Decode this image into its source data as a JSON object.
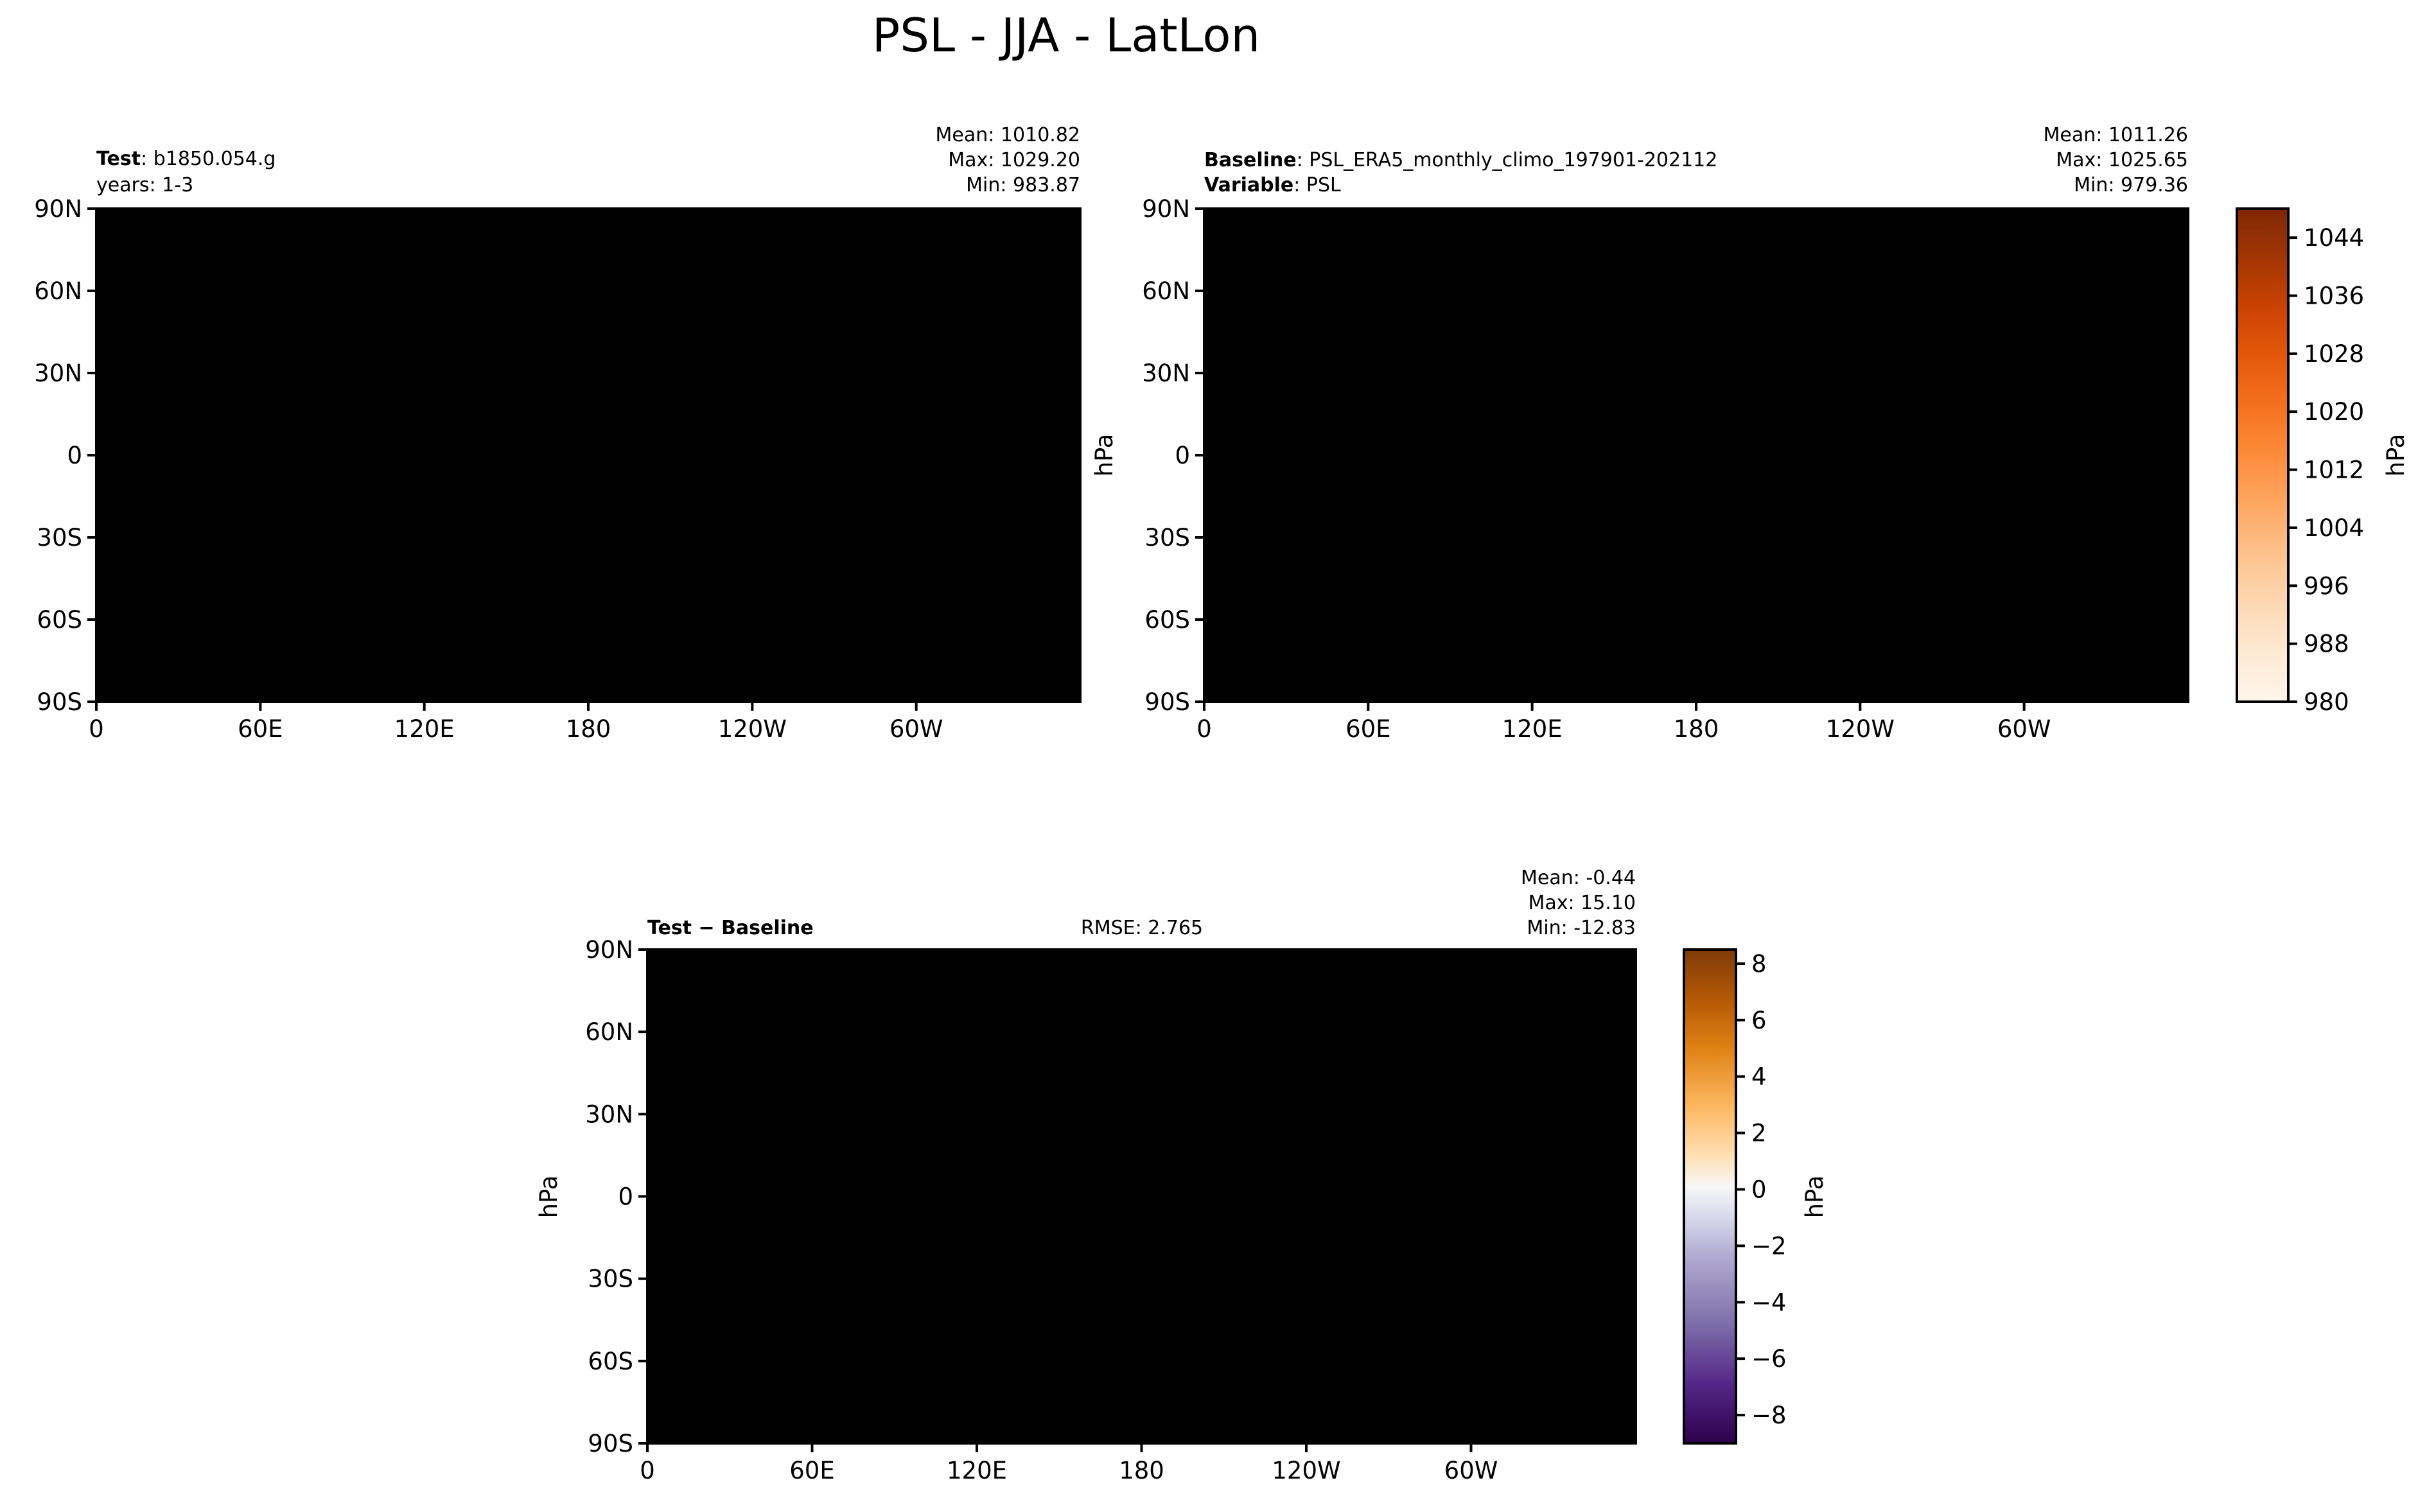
{
  "title": "PSL - JJA - LatLon",
  "colors": {
    "psl_colormap": [
      "#fff5eb",
      "#fee9d3",
      "#fdd8b3",
      "#fdc28c",
      "#fda762",
      "#fd8c3b",
      "#f4711f",
      "#e5580c",
      "#cb4302",
      "#a23503",
      "#7f2704"
    ],
    "diff_colormap": [
      "#2d004b",
      "#542788",
      "#8073ac",
      "#b2abd2",
      "#d8daeb",
      "#f7f7f7",
      "#fee0b6",
      "#fdb863",
      "#e08214",
      "#b35806",
      "#7f3b08"
    ]
  },
  "chart_data": [
    {
      "type": "heatmap",
      "panel": "test",
      "title_label": "Test",
      "title_value": "b1850.054.g",
      "subtitle": "years: 1-3",
      "stats": {
        "mean": "Mean: 1010.82",
        "max": "Max: 1029.20",
        "min": "Min: 983.87"
      },
      "x_ticks": [
        "0",
        "60E",
        "120E",
        "180",
        "120W",
        "60W"
      ],
      "y_ticks": [
        "90N",
        "60N",
        "30N",
        "0",
        "30S",
        "60S",
        "90S"
      ],
      "xlim": [
        0,
        360
      ],
      "ylim": [
        -90,
        90
      ],
      "colormap": "Oranges",
      "value_range": [
        983.87,
        1029.2
      ]
    },
    {
      "type": "heatmap",
      "panel": "baseline",
      "title_label": "Baseline",
      "title_value": "PSL_ERA5_monthly_climo_197901-202112",
      "variable_label": "Variable",
      "variable_value": "PSL",
      "stats": {
        "mean": "Mean: 1011.26",
        "max": "Max: 1025.65",
        "min": "Min: 979.36"
      },
      "x_ticks": [
        "0",
        "60E",
        "120E",
        "180",
        "120W",
        "60W"
      ],
      "y_ticks": [
        "90N",
        "60N",
        "30N",
        "0",
        "30S",
        "60S",
        "90S"
      ],
      "xlim": [
        0,
        360
      ],
      "ylim": [
        -90,
        90
      ],
      "colormap": "Oranges",
      "value_range": [
        979.36,
        1025.65
      ],
      "ylabel": "hPa",
      "colorbar": {
        "ticks": [
          "1044",
          "1036",
          "1028",
          "1020",
          "1012",
          "1004",
          "996",
          "988",
          "980"
        ],
        "range": [
          980,
          1048
        ],
        "label": "hPa"
      }
    },
    {
      "type": "heatmap",
      "panel": "difference",
      "title_text": "Test − Baseline",
      "rmse": "RMSE: 2.765",
      "stats": {
        "mean": "Mean: -0.44",
        "max": "Max: 15.10",
        "min": "Min: -12.83"
      },
      "x_ticks": [
        "0",
        "60E",
        "120E",
        "180",
        "120W",
        "60W"
      ],
      "y_ticks": [
        "90N",
        "60N",
        "30N",
        "0",
        "30S",
        "60S",
        "90S"
      ],
      "xlim": [
        0,
        360
      ],
      "ylim": [
        -90,
        90
      ],
      "colormap": "PuOr_r",
      "value_range": [
        -12.83,
        15.1
      ],
      "ylabel": "hPa",
      "colorbar": {
        "ticks": [
          "8",
          "6",
          "4",
          "2",
          "0",
          "−2",
          "−4",
          "−6",
          "−8"
        ],
        "range": [
          -9,
          8.5
        ],
        "label": "hPa"
      }
    }
  ]
}
